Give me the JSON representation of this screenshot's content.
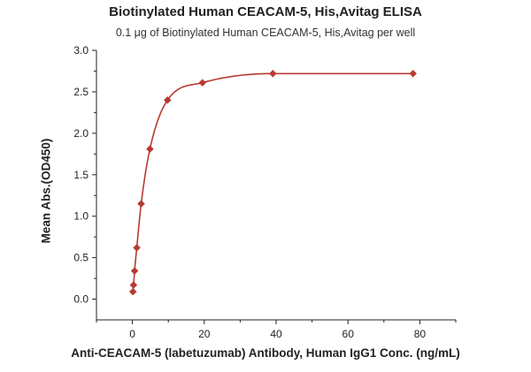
{
  "chart_data": {
    "type": "scatter",
    "title": "Biotinylated Human CEACAM-5, His,Avitag ELISA",
    "subtitle": "0.1 μg of Biotinylated Human CEACAM-5, His,Avitag per well",
    "xlabel": "Anti-CEACAM-5 (labetuzumab) Antibody, Human IgG1 Conc. (ng/mL)",
    "ylabel": "Mean Abs.(OD450)",
    "xlim": [
      -10,
      90
    ],
    "ylim": [
      -0.25,
      3.0
    ],
    "x_ticks": [
      0,
      20,
      40,
      60,
      80
    ],
    "y_ticks": [
      0.0,
      0.5,
      1.0,
      1.5,
      2.0,
      2.5,
      3.0
    ],
    "x_tick_labels": [
      "0",
      "20",
      "40",
      "60",
      "80"
    ],
    "y_tick_labels": [
      "0.0",
      "0.5",
      "1.0",
      "1.5",
      "2.0",
      "2.5",
      "3.0"
    ],
    "grid": false,
    "series": [
      {
        "marker": "diamond",
        "color": "#b83a32",
        "x": [
          0.15,
          0.31,
          0.61,
          1.22,
          2.44,
          4.88,
          9.77,
          19.5,
          39.1,
          78.1
        ],
        "y": [
          0.09,
          0.17,
          0.34,
          0.62,
          1.15,
          1.81,
          2.4,
          2.61,
          2.72,
          2.72
        ],
        "fit_curve": true
      }
    ]
  }
}
